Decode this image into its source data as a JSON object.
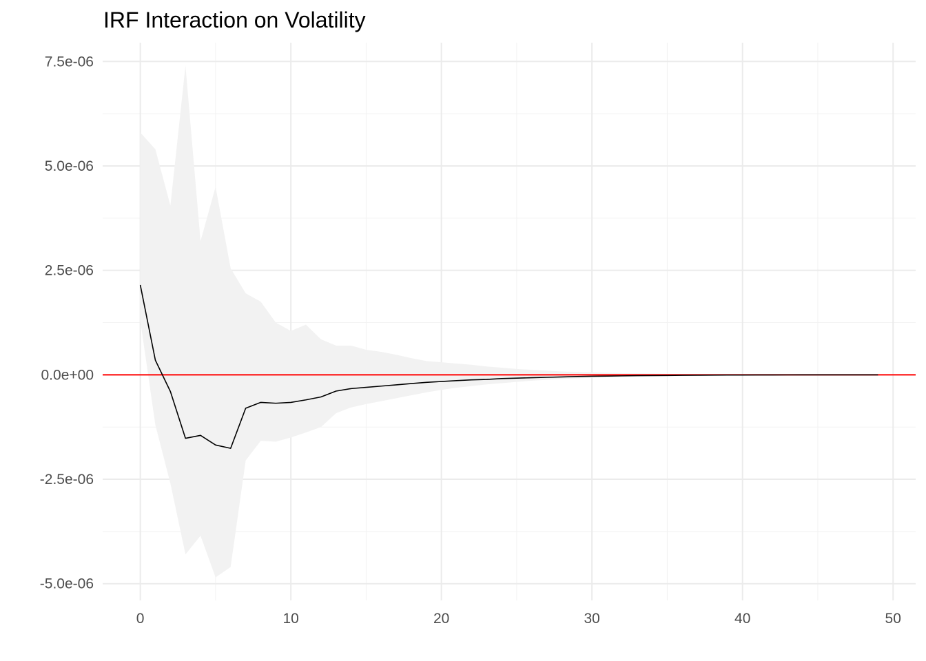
{
  "chart_data": {
    "type": "line",
    "title": "IRF Interaction on Volatility",
    "xlabel": "",
    "ylabel": "",
    "xlim": [
      -2.5,
      51.5
    ],
    "ylim": [
      -5.4e-06,
      7.95e-06
    ],
    "x_ticks": [
      0,
      10,
      20,
      30,
      40,
      50
    ],
    "x_tick_labels": [
      "0",
      "10",
      "20",
      "30",
      "40",
      "50"
    ],
    "y_ticks": [
      -5e-06,
      -2.5e-06,
      0,
      2.5e-06,
      5e-06,
      7.5e-06
    ],
    "y_tick_labels": [
      "-5.0e-06",
      "-2.5e-06",
      "0.0e+00",
      "2.5e-06",
      "5.0e-06",
      "7.5e-06"
    ],
    "grid": true,
    "legend": "none",
    "colors": {
      "irf_line": "#000000",
      "zero_line": "#ff0000",
      "band_fill": "#f2f2f2"
    },
    "reference_line": {
      "y": 0
    },
    "series": [
      {
        "x": [
          0,
          1,
          2,
          3,
          4,
          5,
          6,
          7,
          8,
          9,
          10,
          11,
          12,
          13,
          14,
          15,
          16,
          17,
          18,
          19,
          20,
          21,
          22,
          23,
          24,
          25,
          26,
          27,
          28,
          29,
          30,
          31,
          32,
          33,
          34,
          35,
          36,
          37,
          38,
          39,
          40,
          41,
          42,
          43,
          44,
          45,
          46,
          47,
          48,
          49
        ],
        "y": [
          2.15e-06,
          3.5e-07,
          -4e-07,
          -1.52e-06,
          -1.45e-06,
          -1.68e-06,
          -1.76e-06,
          -8e-07,
          -6.6e-07,
          -6.8e-07,
          -6.6e-07,
          -6e-07,
          -5.3e-07,
          -3.9e-07,
          -3.3e-07,
          -3e-07,
          -2.7e-07,
          -2.4e-07,
          -2.1e-07,
          -1.8e-07,
          -1.6e-07,
          -1.4e-07,
          -1.2e-07,
          -1.1e-07,
          -9e-08,
          -8e-08,
          -7e-08,
          -6e-08,
          -5e-08,
          -4e-08,
          -3.5e-08,
          -3e-08,
          -2.5e-08,
          -2e-08,
          -1.8e-08,
          -1.5e-08,
          -1.2e-08,
          -1e-08,
          -8e-09,
          -6e-09,
          -5e-09,
          -4e-09,
          -3e-09,
          -2.5e-09,
          -2e-09,
          -1.5e-09,
          -1e-09,
          -1e-09,
          -5e-10,
          -5e-10
        ],
        "lower": [
          1.3e-06,
          -1.2e-06,
          -2.6e-06,
          -4.3e-06,
          -3.85e-06,
          -4.85e-06,
          -4.6e-06,
          -2.05e-06,
          -1.58e-06,
          -1.6e-06,
          -1.5e-06,
          -1.38e-06,
          -1.25e-06,
          -9.2e-07,
          -7.8e-07,
          -7e-07,
          -6.3e-07,
          -5.6e-07,
          -4.9e-07,
          -4.2e-07,
          -3.6e-07,
          -3.1e-07,
          -2.7e-07,
          -2.3e-07,
          -2e-07,
          -1.7e-07,
          -1.4e-07,
          -1.2e-07,
          -1e-07,
          -8.5e-08,
          -7e-08,
          -6e-08,
          -5e-08,
          -4e-08,
          -3.4e-08,
          -2.8e-08,
          -2.3e-08,
          -1.9e-08,
          -1.5e-08,
          -1.2e-08,
          -1e-08,
          -8e-09,
          -6e-09,
          -5e-09,
          -4e-09,
          -3e-09,
          -2.5e-09,
          -2e-09,
          -1.5e-09,
          -1e-09
        ],
        "upper": [
          5.8e-06,
          5.4e-06,
          4.05e-06,
          7.4e-06,
          3.2e-06,
          4.5e-06,
          2.55e-06,
          1.95e-06,
          1.75e-06,
          1.25e-06,
          1.05e-06,
          1.2e-06,
          8.5e-07,
          7e-07,
          7e-07,
          6e-07,
          5.5e-07,
          4.8e-07,
          4e-07,
          3.3e-07,
          3e-07,
          2.7e-07,
          2.4e-07,
          2e-07,
          1.7e-07,
          1.4e-07,
          1.2e-07,
          1e-07,
          8e-08,
          7e-08,
          6e-08,
          5e-08,
          4e-08,
          3.5e-08,
          3e-08,
          2.5e-08,
          2e-08,
          1.7e-08,
          1.4e-08,
          1.1e-08,
          9e-09,
          7e-09,
          6e-09,
          5e-09,
          4e-09,
          3e-09,
          2.5e-09,
          2e-09,
          1.5e-09,
          1e-09
        ]
      }
    ]
  }
}
